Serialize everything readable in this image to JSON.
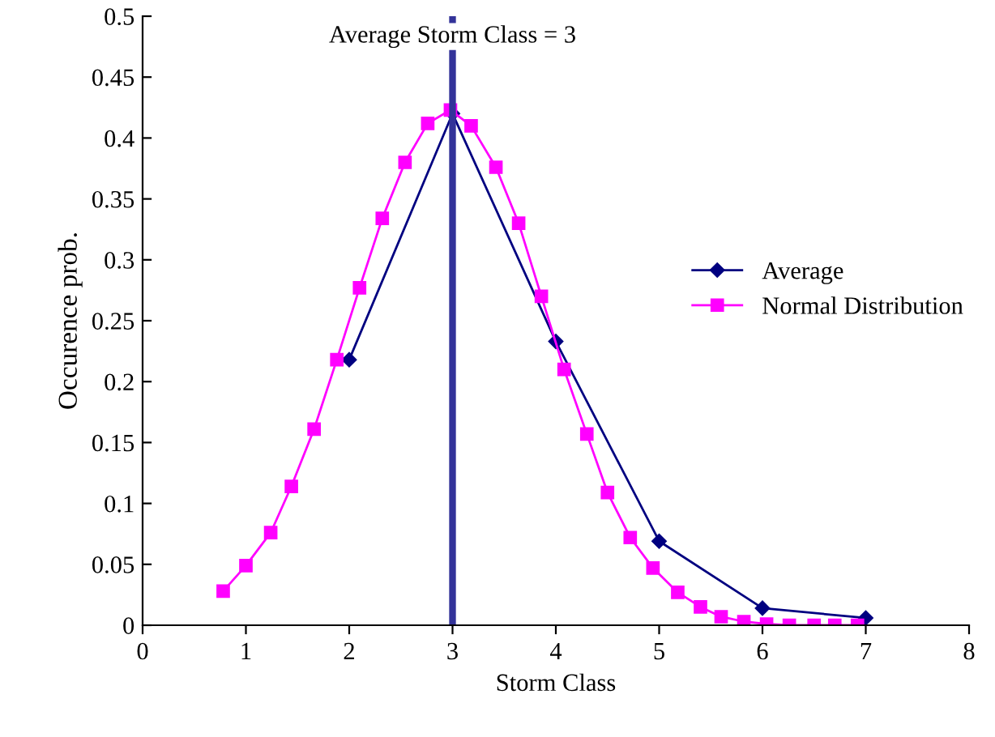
{
  "chart_data": {
    "type": "line",
    "xlabel": "Storm Class",
    "ylabel": "Occurence prob.",
    "xlim": [
      0,
      8
    ],
    "xticks": [
      0,
      1,
      2,
      3,
      4,
      5,
      6,
      7,
      8
    ],
    "ylim": [
      0,
      0.5
    ],
    "yticks": [
      0,
      0.05,
      0.1,
      0.15,
      0.2,
      0.25,
      0.3,
      0.35,
      0.4,
      0.45,
      0.5
    ],
    "grid": false,
    "legend": "right",
    "line_style": "solid",
    "series": [
      {
        "name": "Average",
        "color": "#000080",
        "marker": "diamond",
        "x": [
          2,
          3,
          4,
          5,
          6,
          7
        ],
        "values": [
          0.218,
          0.42,
          0.233,
          0.069,
          0.014,
          0.006
        ]
      },
      {
        "name": "Normal Distribution",
        "color": "#ff00ff",
        "marker": "square",
        "x": [
          0.78,
          1.0,
          1.24,
          1.44,
          1.66,
          1.88,
          2.1,
          2.32,
          2.54,
          2.76,
          2.98,
          3.18,
          3.42,
          3.64,
          3.86,
          4.08,
          4.3,
          4.5,
          4.72,
          4.94,
          5.18,
          5.4,
          5.6,
          5.82,
          6.04,
          6.26,
          6.5,
          6.7,
          6.92
        ],
        "values": [
          0.028,
          0.049,
          0.076,
          0.114,
          0.161,
          0.218,
          0.277,
          0.334,
          0.38,
          0.412,
          0.423,
          0.41,
          0.376,
          0.33,
          0.27,
          0.21,
          0.157,
          0.109,
          0.072,
          0.047,
          0.027,
          0.015,
          0.007,
          0.003,
          0.001,
          0.0,
          0.0,
          0.0,
          0.0
        ]
      }
    ],
    "ref_lines": [
      {
        "axis": "x",
        "value": 3,
        "label": "Average Storm Class = 3",
        "color": "#333399",
        "line_style": "solid"
      }
    ]
  }
}
